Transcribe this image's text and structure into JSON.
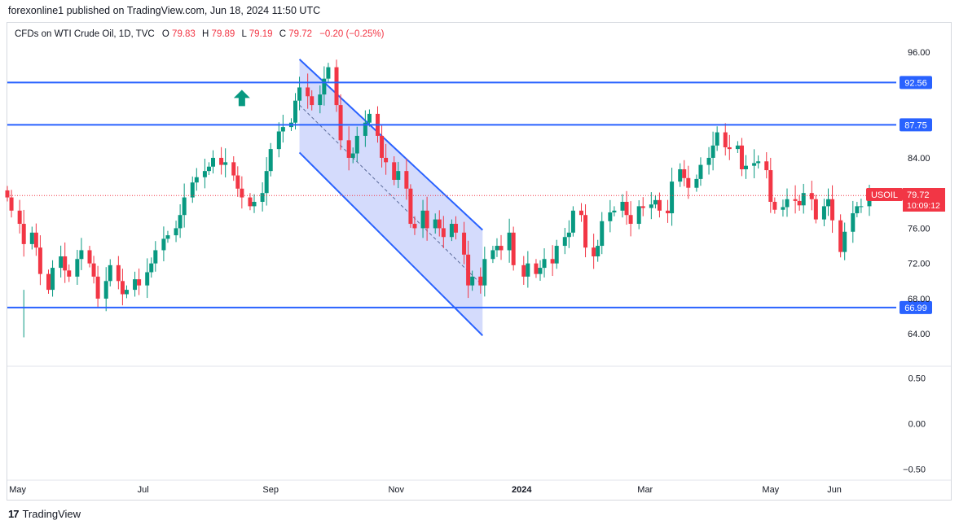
{
  "publisher": "forexonline1 published on TradingView.com, Jun 18, 2024 11:50 UTC",
  "footer_brand": "TradingView",
  "footer_logo": "17",
  "legend": {
    "instrument": "CFDs on WTI Crude Oil, 1D, TVC",
    "open_label": "O",
    "open": "79.83",
    "high_label": "H",
    "high": "79.89",
    "low_label": "L",
    "low": "79.19",
    "close_label": "C",
    "close": "79.72",
    "change": "−0.20 (−0.25%)"
  },
  "price_badge": {
    "symbol": "USOIL",
    "price": "79.72",
    "countdown": "10:09:12"
  },
  "colors": {
    "up": "#089981",
    "down": "#f23645",
    "line": "#2962ff",
    "channel_fill": "#c9d2fb",
    "arrow": "#089981"
  },
  "chart_data": {
    "type": "candlestick",
    "y_ticks": [
      "96.00",
      "84.00",
      "76.00",
      "72.00",
      "68.00",
      "64.00"
    ],
    "y_ticks_values": [
      96,
      84,
      76,
      72,
      68,
      64
    ],
    "x_ticks": [
      "May",
      "Jul",
      "Sep",
      "Nov",
      "2024",
      "Mar",
      "May",
      "Jun"
    ],
    "x_range": [
      "2023-04-26",
      "2024-06-18"
    ],
    "y_range": [
      60.5,
      97.5
    ],
    "horizontal_levels": [
      {
        "value": 92.56,
        "label": "92.56"
      },
      {
        "value": 87.75,
        "label": "87.75"
      },
      {
        "value": 66.99,
        "label": "66.99"
      }
    ],
    "last_price_line": 79.72,
    "channel": {
      "upper": [
        [
          "2023-09-15",
          95.2
        ],
        [
          "2023-12-13",
          75.8
        ]
      ],
      "lower": [
        [
          "2023-09-15",
          84.6
        ],
        [
          "2023-12-13",
          63.8
        ]
      ],
      "mid": [
        [
          "2023-09-15",
          90.0
        ],
        [
          "2023-12-13",
          69.5
        ]
      ]
    },
    "up_arrow_at": [
      "2023-08-18",
      90.8
    ],
    "closes": [
      [
        "2023-04-26",
        79.5
      ],
      [
        "2023-04-28",
        78.0
      ],
      [
        "2023-05-02",
        76.5
      ],
      [
        "2023-05-04",
        74.2
      ],
      [
        "2023-05-08",
        75.5
      ],
      [
        "2023-05-10",
        73.8
      ],
      [
        "2023-05-12",
        70.8
      ],
      [
        "2023-05-16",
        69.0
      ],
      [
        "2023-05-18",
        71.5
      ],
      [
        "2023-05-22",
        72.8
      ],
      [
        "2023-05-24",
        71.2
      ],
      [
        "2023-05-26",
        70.5
      ],
      [
        "2023-05-30",
        72.5
      ],
      [
        "2023-06-01",
        73.5
      ],
      [
        "2023-06-05",
        72.0
      ],
      [
        "2023-06-07",
        70.5
      ],
      [
        "2023-06-09",
        68.0
      ],
      [
        "2023-06-13",
        70.0
      ],
      [
        "2023-06-15",
        71.8
      ],
      [
        "2023-06-19",
        70.0
      ],
      [
        "2023-06-21",
        68.5
      ],
      [
        "2023-06-23",
        69.0
      ],
      [
        "2023-06-27",
        70.2
      ],
      [
        "2023-06-29",
        69.5
      ],
      [
        "2023-07-03",
        71.0
      ],
      [
        "2023-07-05",
        72.0
      ],
      [
        "2023-07-07",
        73.5
      ],
      [
        "2023-07-11",
        74.8
      ],
      [
        "2023-07-13",
        75.2
      ],
      [
        "2023-07-17",
        76.0
      ],
      [
        "2023-07-19",
        77.5
      ],
      [
        "2023-07-21",
        79.5
      ],
      [
        "2023-07-25",
        81.2
      ],
      [
        "2023-07-27",
        81.8
      ],
      [
        "2023-07-31",
        82.5
      ],
      [
        "2023-08-02",
        83.0
      ],
      [
        "2023-08-04",
        84.0
      ],
      [
        "2023-08-08",
        83.2
      ],
      [
        "2023-08-10",
        83.5
      ],
      [
        "2023-08-14",
        82.0
      ],
      [
        "2023-08-16",
        80.5
      ],
      [
        "2023-08-18",
        79.5
      ],
      [
        "2023-08-22",
        78.5
      ],
      [
        "2023-08-24",
        79.0
      ],
      [
        "2023-08-28",
        80.0
      ],
      [
        "2023-08-30",
        82.5
      ],
      [
        "2023-09-01",
        85.0
      ],
      [
        "2023-09-05",
        87.0
      ],
      [
        "2023-09-07",
        87.5
      ],
      [
        "2023-09-11",
        88.0
      ],
      [
        "2023-09-13",
        90.5
      ],
      [
        "2023-09-15",
        92.0
      ],
      [
        "2023-09-19",
        91.0
      ],
      [
        "2023-09-21",
        90.0
      ],
      [
        "2023-09-25",
        91.2
      ],
      [
        "2023-09-27",
        93.0
      ],
      [
        "2023-09-29",
        94.3
      ],
      [
        "2023-10-03",
        90.0
      ],
      [
        "2023-10-05",
        86.0
      ],
      [
        "2023-10-09",
        84.0
      ],
      [
        "2023-10-11",
        84.5
      ],
      [
        "2023-10-13",
        86.5
      ],
      [
        "2023-10-17",
        88.0
      ],
      [
        "2023-10-19",
        89.0
      ],
      [
        "2023-10-23",
        86.5
      ],
      [
        "2023-10-25",
        84.0
      ],
      [
        "2023-10-27",
        83.5
      ],
      [
        "2023-10-31",
        81.5
      ],
      [
        "2023-11-02",
        82.5
      ],
      [
        "2023-11-06",
        80.5
      ],
      [
        "2023-11-08",
        76.5
      ],
      [
        "2023-11-10",
        76.0
      ],
      [
        "2023-11-14",
        78.0
      ],
      [
        "2023-11-16",
        76.0
      ],
      [
        "2023-11-20",
        77.0
      ],
      [
        "2023-11-22",
        76.0
      ],
      [
        "2023-11-24",
        75.0
      ],
      [
        "2023-11-28",
        76.5
      ],
      [
        "2023-11-30",
        75.5
      ],
      [
        "2023-12-04",
        73.0
      ],
      [
        "2023-12-06",
        69.5
      ],
      [
        "2023-12-08",
        70.5
      ],
      [
        "2023-12-12",
        69.5
      ],
      [
        "2023-12-14",
        72.5
      ],
      [
        "2023-12-18",
        73.5
      ],
      [
        "2023-12-20",
        74.0
      ],
      [
        "2023-12-22",
        73.5
      ],
      [
        "2023-12-26",
        75.5
      ],
      [
        "2023-12-28",
        71.8
      ],
      [
        "2024-01-02",
        70.5
      ],
      [
        "2024-01-04",
        72.0
      ],
      [
        "2024-01-08",
        70.8
      ],
      [
        "2024-01-10",
        71.5
      ],
      [
        "2024-01-12",
        72.5
      ],
      [
        "2024-01-16",
        72.0
      ],
      [
        "2024-01-18",
        74.0
      ],
      [
        "2024-01-22",
        75.0
      ],
      [
        "2024-01-24",
        75.5
      ],
      [
        "2024-01-26",
        78.0
      ],
      [
        "2024-01-30",
        77.5
      ],
      [
        "2024-02-01",
        73.8
      ],
      [
        "2024-02-05",
        72.8
      ],
      [
        "2024-02-07",
        74.0
      ],
      [
        "2024-02-09",
        76.8
      ],
      [
        "2024-02-13",
        77.8
      ],
      [
        "2024-02-15",
        78.0
      ],
      [
        "2024-02-19",
        79.0
      ],
      [
        "2024-02-21",
        77.5
      ],
      [
        "2024-02-23",
        76.5
      ],
      [
        "2024-02-27",
        78.5
      ],
      [
        "2024-02-29",
        78.3
      ],
      [
        "2024-03-04",
        78.7
      ],
      [
        "2024-03-06",
        79.2
      ],
      [
        "2024-03-08",
        78.0
      ],
      [
        "2024-03-12",
        77.7
      ],
      [
        "2024-03-14",
        81.3
      ],
      [
        "2024-03-18",
        82.7
      ],
      [
        "2024-03-20",
        81.7
      ],
      [
        "2024-03-22",
        80.6
      ],
      [
        "2024-03-26",
        81.6
      ],
      [
        "2024-03-28",
        83.2
      ],
      [
        "2024-04-01",
        84.0
      ],
      [
        "2024-04-03",
        85.4
      ],
      [
        "2024-04-05",
        86.9
      ],
      [
        "2024-04-09",
        85.2
      ],
      [
        "2024-04-11",
        85.0
      ],
      [
        "2024-04-15",
        85.4
      ],
      [
        "2024-04-17",
        82.7
      ],
      [
        "2024-04-19",
        83.1
      ],
      [
        "2024-04-23",
        83.4
      ],
      [
        "2024-04-25",
        83.6
      ],
      [
        "2024-04-29",
        82.6
      ],
      [
        "2024-05-01",
        79.0
      ],
      [
        "2024-05-03",
        78.1
      ],
      [
        "2024-05-07",
        78.4
      ],
      [
        "2024-05-09",
        79.3
      ],
      [
        "2024-05-13",
        79.1
      ],
      [
        "2024-05-15",
        78.6
      ],
      [
        "2024-05-17",
        80.0
      ],
      [
        "2024-05-21",
        79.3
      ],
      [
        "2024-05-23",
        77.0
      ],
      [
        "2024-05-27",
        78.5
      ],
      [
        "2024-05-29",
        79.3
      ],
      [
        "2024-05-31",
        76.9
      ],
      [
        "2024-06-04",
        73.3
      ],
      [
        "2024-06-06",
        75.6
      ],
      [
        "2024-06-10",
        77.7
      ],
      [
        "2024-06-12",
        78.5
      ],
      [
        "2024-06-14",
        78.5
      ],
      [
        "2024-06-18",
        79.72
      ]
    ],
    "lower_pane": {
      "y_ticks": [
        "0.50",
        "0.00",
        "−0.50"
      ],
      "y_ticks_values": [
        0.5,
        0.0,
        -0.5
      ],
      "y_range": [
        -0.62,
        0.62
      ]
    }
  }
}
